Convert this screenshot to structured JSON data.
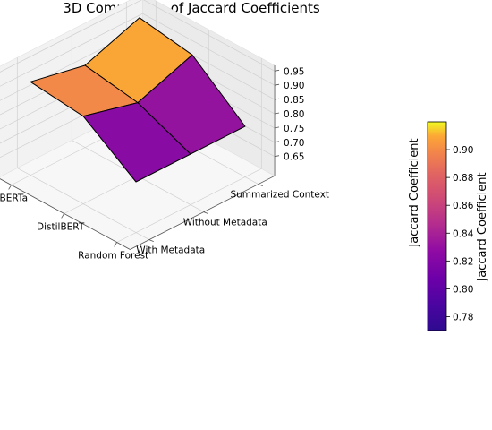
{
  "chart_data": {
    "type": "surface",
    "title": "3D Comparison of Jaccard Coefficients",
    "x_categories": [
      "RoBERTa",
      "DistilBERT",
      "Random Forest"
    ],
    "y_categories": [
      "With Metadata",
      "Without Metadata",
      "Summarized Context"
    ],
    "zlabel": "Jaccard Coefficient",
    "z_ticks": [
      "0.65",
      "0.70",
      "0.75",
      "0.80",
      "0.85",
      "0.90",
      "0.95"
    ],
    "zlim": [
      0.65,
      0.97
    ],
    "values": [
      [
        0.91,
        0.87,
        0.94
      ],
      [
        0.89,
        0.84,
        0.91
      ],
      [
        0.76,
        0.76,
        0.76
      ]
    ],
    "colormap": "plasma",
    "colorbar": {
      "label": "Jaccard Coefficient",
      "ticks": [
        "0.78",
        "0.80",
        "0.82",
        "0.84",
        "0.86",
        "0.88",
        "0.90"
      ],
      "range": [
        0.77,
        0.92
      ]
    },
    "grid": true
  }
}
